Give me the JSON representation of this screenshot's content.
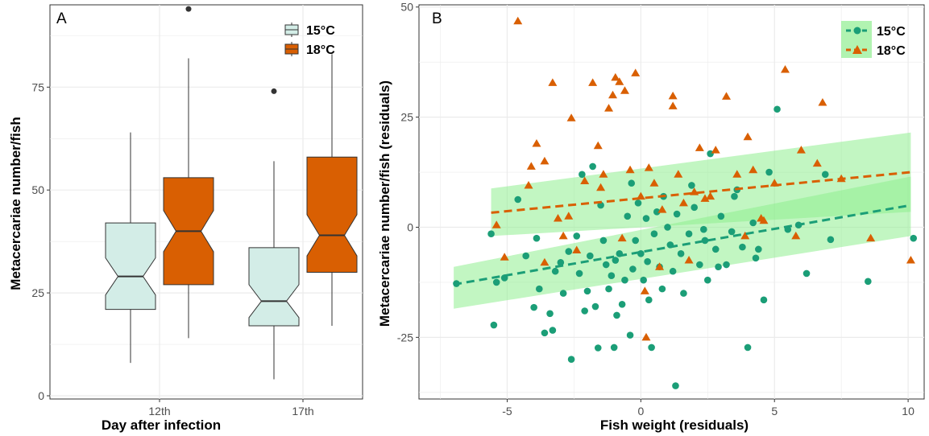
{
  "colors": {
    "c15_fill": "#d3ede7",
    "c18_fill": "#d95f02",
    "c15_point": "#1b9e77",
    "c18_point": "#d95f02",
    "ribbon": "#90ee90",
    "grid": "#ebebeb"
  },
  "chart_data": [
    {
      "panel_label": "A",
      "type": "box",
      "xlabel": "Day after infection",
      "ylabel": "Metacercariae number/fish",
      "categories": [
        "12th",
        "17th"
      ],
      "ylim": [
        0,
        95
      ],
      "yticks": [
        0,
        25,
        50,
        75
      ],
      "notched": true,
      "legend_position": "top-right",
      "legend": [
        "15°C",
        "18°C"
      ],
      "series": [
        {
          "name": "15°C",
          "boxes": [
            {
              "category": "12th",
              "min": 8,
              "q1": 21,
              "median": 29,
              "q3": 42,
              "max": 64,
              "notch_low": 24.5,
              "notch_high": 33.5,
              "outliers": []
            },
            {
              "category": "17th",
              "min": 4,
              "q1": 17,
              "median": 23,
              "q3": 36,
              "max": 57,
              "notch_low": 19,
              "notch_high": 27,
              "outliers": [
                74
              ]
            }
          ]
        },
        {
          "name": "18°C",
          "boxes": [
            {
              "category": "12th",
              "min": 14,
              "q1": 27,
              "median": 40,
              "q3": 53,
              "max": 82,
              "notch_low": 35,
              "notch_high": 45,
              "outliers": [
                94
              ]
            },
            {
              "category": "17th",
              "min": 17,
              "q1": 30,
              "median": 39,
              "q3": 58,
              "max": 83,
              "notch_low": 34,
              "notch_high": 44,
              "outliers": []
            }
          ]
        }
      ]
    },
    {
      "panel_label": "B",
      "type": "scatter",
      "xlabel": "Fish weight (residuals)",
      "ylabel": "Metacercariae number/fish (residuals)",
      "xlim": [
        -8.3,
        10.6
      ],
      "ylim": [
        -39,
        50.5
      ],
      "xticks": [
        -5,
        0,
        5,
        10
      ],
      "yticks": [
        -25,
        0,
        25,
        50
      ],
      "legend_position": "top-right",
      "legend": [
        "15°C",
        "18°C"
      ],
      "series": [
        {
          "name": "15°C",
          "marker": "circle",
          "fit": {
            "x": [
              -7.0,
              10.1
            ],
            "y": [
              -13.0,
              5.0
            ]
          },
          "ribbon": {
            "x": [
              -7.0,
              10.1
            ],
            "lower": [
              -18.5,
              -2.0
            ],
            "upper": [
              -9.0,
              11.5
            ]
          },
          "points": [
            [
              -5.6,
              -1.5
            ],
            [
              -5.5,
              -22.2
            ],
            [
              -5.4,
              -12.5
            ],
            [
              -4.6,
              6.3
            ],
            [
              -4.0,
              -18.2
            ],
            [
              -3.8,
              -14.0
            ],
            [
              -3.6,
              -24.0
            ],
            [
              -3.4,
              -19.6
            ],
            [
              -3.3,
              -23.4
            ],
            [
              -3.2,
              -10.0
            ],
            [
              -3.0,
              -8.0
            ],
            [
              -2.7,
              -5.5
            ],
            [
              -2.6,
              -30.0
            ],
            [
              -2.4,
              -2.0
            ],
            [
              -2.3,
              -10.5
            ],
            [
              -2.1,
              -19.0
            ],
            [
              -2.0,
              -14.5
            ],
            [
              -1.9,
              -6.5
            ],
            [
              -1.7,
              -18.0
            ],
            [
              -1.6,
              -27.4
            ],
            [
              -1.4,
              -3.0
            ],
            [
              -1.3,
              -8.5
            ],
            [
              -1.2,
              -14.0
            ],
            [
              -1.1,
              -11.0
            ],
            [
              -1.0,
              -27.3
            ],
            [
              -0.9,
              -20.0
            ],
            [
              -0.8,
              -6.0
            ],
            [
              -0.7,
              -17.5
            ],
            [
              -0.6,
              -12.0
            ],
            [
              -0.5,
              2.5
            ],
            [
              -0.4,
              -24.5
            ],
            [
              -0.3,
              -9.5
            ],
            [
              -0.2,
              -3.0
            ],
            [
              -0.1,
              5.5
            ],
            [
              0.0,
              -6.0
            ],
            [
              0.1,
              -12.0
            ],
            [
              0.2,
              2.0
            ],
            [
              0.3,
              -16.5
            ],
            [
              0.4,
              -27.3
            ],
            [
              0.5,
              -1.5
            ],
            [
              0.6,
              3.5
            ],
            [
              0.7,
              -9.0
            ],
            [
              0.8,
              -14.0
            ],
            [
              1.0,
              0.0
            ],
            [
              1.1,
              -4.0
            ],
            [
              1.2,
              -10.0
            ],
            [
              1.3,
              -36.0
            ],
            [
              1.5,
              -6.0
            ],
            [
              1.6,
              -15.0
            ],
            [
              1.8,
              -1.5
            ],
            [
              2.0,
              4.5
            ],
            [
              2.2,
              -8.5
            ],
            [
              2.4,
              -3.0
            ],
            [
              2.5,
              -12.0
            ],
            [
              2.6,
              16.7
            ],
            [
              2.8,
              -5.0
            ],
            [
              3.0,
              2.5
            ],
            [
              3.2,
              -8.5
            ],
            [
              3.4,
              -1.0
            ],
            [
              3.6,
              8.5
            ],
            [
              3.8,
              -4.5
            ],
            [
              4.0,
              -27.3
            ],
            [
              4.2,
              1.0
            ],
            [
              4.4,
              -5.0
            ],
            [
              4.6,
              -16.5
            ],
            [
              4.8,
              12.5
            ],
            [
              5.1,
              26.8
            ],
            [
              5.5,
              -0.5
            ],
            [
              5.9,
              0.5
            ],
            [
              6.2,
              -10.5
            ],
            [
              6.9,
              12.0
            ],
            [
              7.1,
              -2.8
            ],
            [
              8.5,
              -12.3
            ],
            [
              10.2,
              -2.5
            ],
            [
              -6.9,
              -12.8
            ],
            [
              -5.1,
              -11.5
            ],
            [
              -4.3,
              -6.5
            ],
            [
              -3.9,
              -2.5
            ],
            [
              -2.9,
              -15.0
            ],
            [
              -2.2,
              12.0
            ],
            [
              -1.8,
              13.8
            ],
            [
              -1.5,
              5.0
            ],
            [
              -0.95,
              -7.5
            ],
            [
              -0.35,
              10.0
            ],
            [
              0.25,
              -7.8
            ],
            [
              0.85,
              7.0
            ],
            [
              1.35,
              3.0
            ],
            [
              1.9,
              9.5
            ],
            [
              2.35,
              -0.5
            ],
            [
              2.9,
              -9.0
            ],
            [
              3.5,
              7.0
            ],
            [
              4.3,
              -7.0
            ]
          ]
        },
        {
          "name": "18°C",
          "marker": "triangle",
          "fit": {
            "x": [
              -5.6,
              10.1
            ],
            "y": [
              3.3,
              12.5
            ]
          },
          "ribbon": {
            "x": [
              -5.6,
              10.1
            ],
            "lower": [
              -2.0,
              3.5
            ],
            "upper": [
              8.8,
              21.5
            ]
          },
          "points": [
            [
              -5.4,
              0.5
            ],
            [
              -5.1,
              -6.8
            ],
            [
              -4.6,
              46.8
            ],
            [
              -4.2,
              9.5
            ],
            [
              -4.1,
              13.8
            ],
            [
              -3.9,
              19.0
            ],
            [
              -3.6,
              15.0
            ],
            [
              -3.3,
              32.8
            ],
            [
              -3.1,
              2.0
            ],
            [
              -2.9,
              -2.0
            ],
            [
              -2.6,
              24.8
            ],
            [
              -2.4,
              -5.2
            ],
            [
              -2.1,
              10.5
            ],
            [
              -1.8,
              32.8
            ],
            [
              -1.6,
              18.5
            ],
            [
              -1.4,
              12.0
            ],
            [
              -1.2,
              27.0
            ],
            [
              -1.05,
              30.0
            ],
            [
              -0.95,
              34.0
            ],
            [
              -0.8,
              33.0
            ],
            [
              -0.6,
              31.0
            ],
            [
              -0.4,
              13.0
            ],
            [
              -0.2,
              35.0
            ],
            [
              0.0,
              7.0
            ],
            [
              0.15,
              -14.5
            ],
            [
              0.3,
              13.5
            ],
            [
              0.5,
              10.0
            ],
            [
              0.8,
              4.0
            ],
            [
              1.2,
              29.8
            ],
            [
              1.4,
              12.0
            ],
            [
              1.6,
              5.5
            ],
            [
              1.8,
              -7.5
            ],
            [
              2.0,
              8.0
            ],
            [
              2.2,
              18.0
            ],
            [
              2.6,
              7.0
            ],
            [
              2.8,
              17.5
            ],
            [
              3.2,
              29.7
            ],
            [
              3.6,
              12.0
            ],
            [
              3.9,
              -2.0
            ],
            [
              4.0,
              20.5
            ],
            [
              4.2,
              13.0
            ],
            [
              4.6,
              1.5
            ],
            [
              5.0,
              10.0
            ],
            [
              5.4,
              35.8
            ],
            [
              5.8,
              -2.0
            ],
            [
              6.0,
              17.5
            ],
            [
              6.6,
              14.5
            ],
            [
              6.8,
              28.3
            ],
            [
              7.5,
              11.0
            ],
            [
              8.6,
              -2.5
            ],
            [
              10.1,
              -7.5
            ],
            [
              1.2,
              27.5
            ],
            [
              0.2,
              -25.0
            ],
            [
              -3.6,
              -8.0
            ],
            [
              -2.7,
              2.5
            ],
            [
              -1.5,
              9.0
            ],
            [
              -0.7,
              -2.5
            ],
            [
              0.7,
              -9.0
            ],
            [
              2.4,
              6.5
            ],
            [
              4.5,
              2.0
            ]
          ]
        }
      ]
    }
  ]
}
